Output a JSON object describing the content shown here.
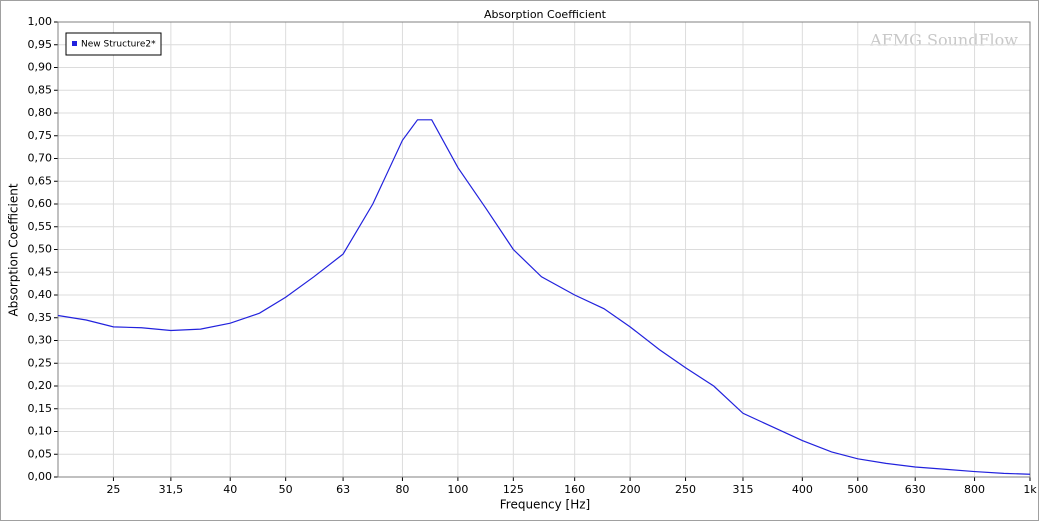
{
  "chart_data": {
    "type": "line",
    "title": "Absorption Coefficient",
    "watermark": "AFMG SoundFlow",
    "x_label": "Frequency [Hz]",
    "y_label": "Absorption Coefficient",
    "log_x": true,
    "grid": true,
    "legend": "top-left",
    "xlim": [
      20,
      1000
    ],
    "ylim": [
      0,
      1
    ],
    "xticks": [
      25,
      {
        "value": 31.5,
        "label": "31,5"
      },
      40,
      50,
      63,
      80,
      100,
      125,
      160,
      200,
      250,
      315,
      400,
      500,
      630,
      800,
      {
        "value": 1000,
        "label": "1k"
      }
    ],
    "yticks": [
      {
        "value": 0,
        "label": "0,00"
      },
      {
        "value": 0.05,
        "label": "0,05"
      },
      {
        "value": 0.1,
        "label": "0,10"
      },
      {
        "value": 0.15,
        "label": "0,15"
      },
      {
        "value": 0.2,
        "label": "0,20"
      },
      {
        "value": 0.25,
        "label": "0,25"
      },
      {
        "value": 0.3,
        "label": "0,30"
      },
      {
        "value": 0.35,
        "label": "0,35"
      },
      {
        "value": 0.4,
        "label": "0,40"
      },
      {
        "value": 0.45,
        "label": "0,45"
      },
      {
        "value": 0.5,
        "label": "0,50"
      },
      {
        "value": 0.55,
        "label": "0,55"
      },
      {
        "value": 0.6,
        "label": "0,60"
      },
      {
        "value": 0.65,
        "label": "0,65"
      },
      {
        "value": 0.7,
        "label": "0,70"
      },
      {
        "value": 0.75,
        "label": "0,75"
      },
      {
        "value": 0.8,
        "label": "0,80"
      },
      {
        "value": 0.85,
        "label": "0,85"
      },
      {
        "value": 0.9,
        "label": "0,90"
      },
      {
        "value": 0.95,
        "label": "0,95"
      },
      {
        "value": 1,
        "label": "1,00"
      }
    ],
    "x": [
      20,
      22.4,
      25,
      28,
      31.5,
      35.5,
      40,
      45,
      50,
      56,
      63,
      71,
      80,
      85,
      90,
      100,
      112,
      125,
      140,
      160,
      180,
      200,
      225,
      250,
      280,
      315,
      355,
      400,
      450,
      500,
      560,
      630,
      710,
      800,
      900,
      1000
    ],
    "series": [
      {
        "name": "New Structure2*",
        "color": "#2222dd",
        "values": [
          0.355,
          0.345,
          0.33,
          0.328,
          0.322,
          0.325,
          0.338,
          0.36,
          0.395,
          0.44,
          0.49,
          0.6,
          0.74,
          0.785,
          0.785,
          0.68,
          0.59,
          0.5,
          0.44,
          0.4,
          0.37,
          0.33,
          0.28,
          0.24,
          0.2,
          0.14,
          0.11,
          0.08,
          0.055,
          0.04,
          0.03,
          0.022,
          0.017,
          0.012,
          0.008,
          0.006
        ]
      }
    ]
  }
}
